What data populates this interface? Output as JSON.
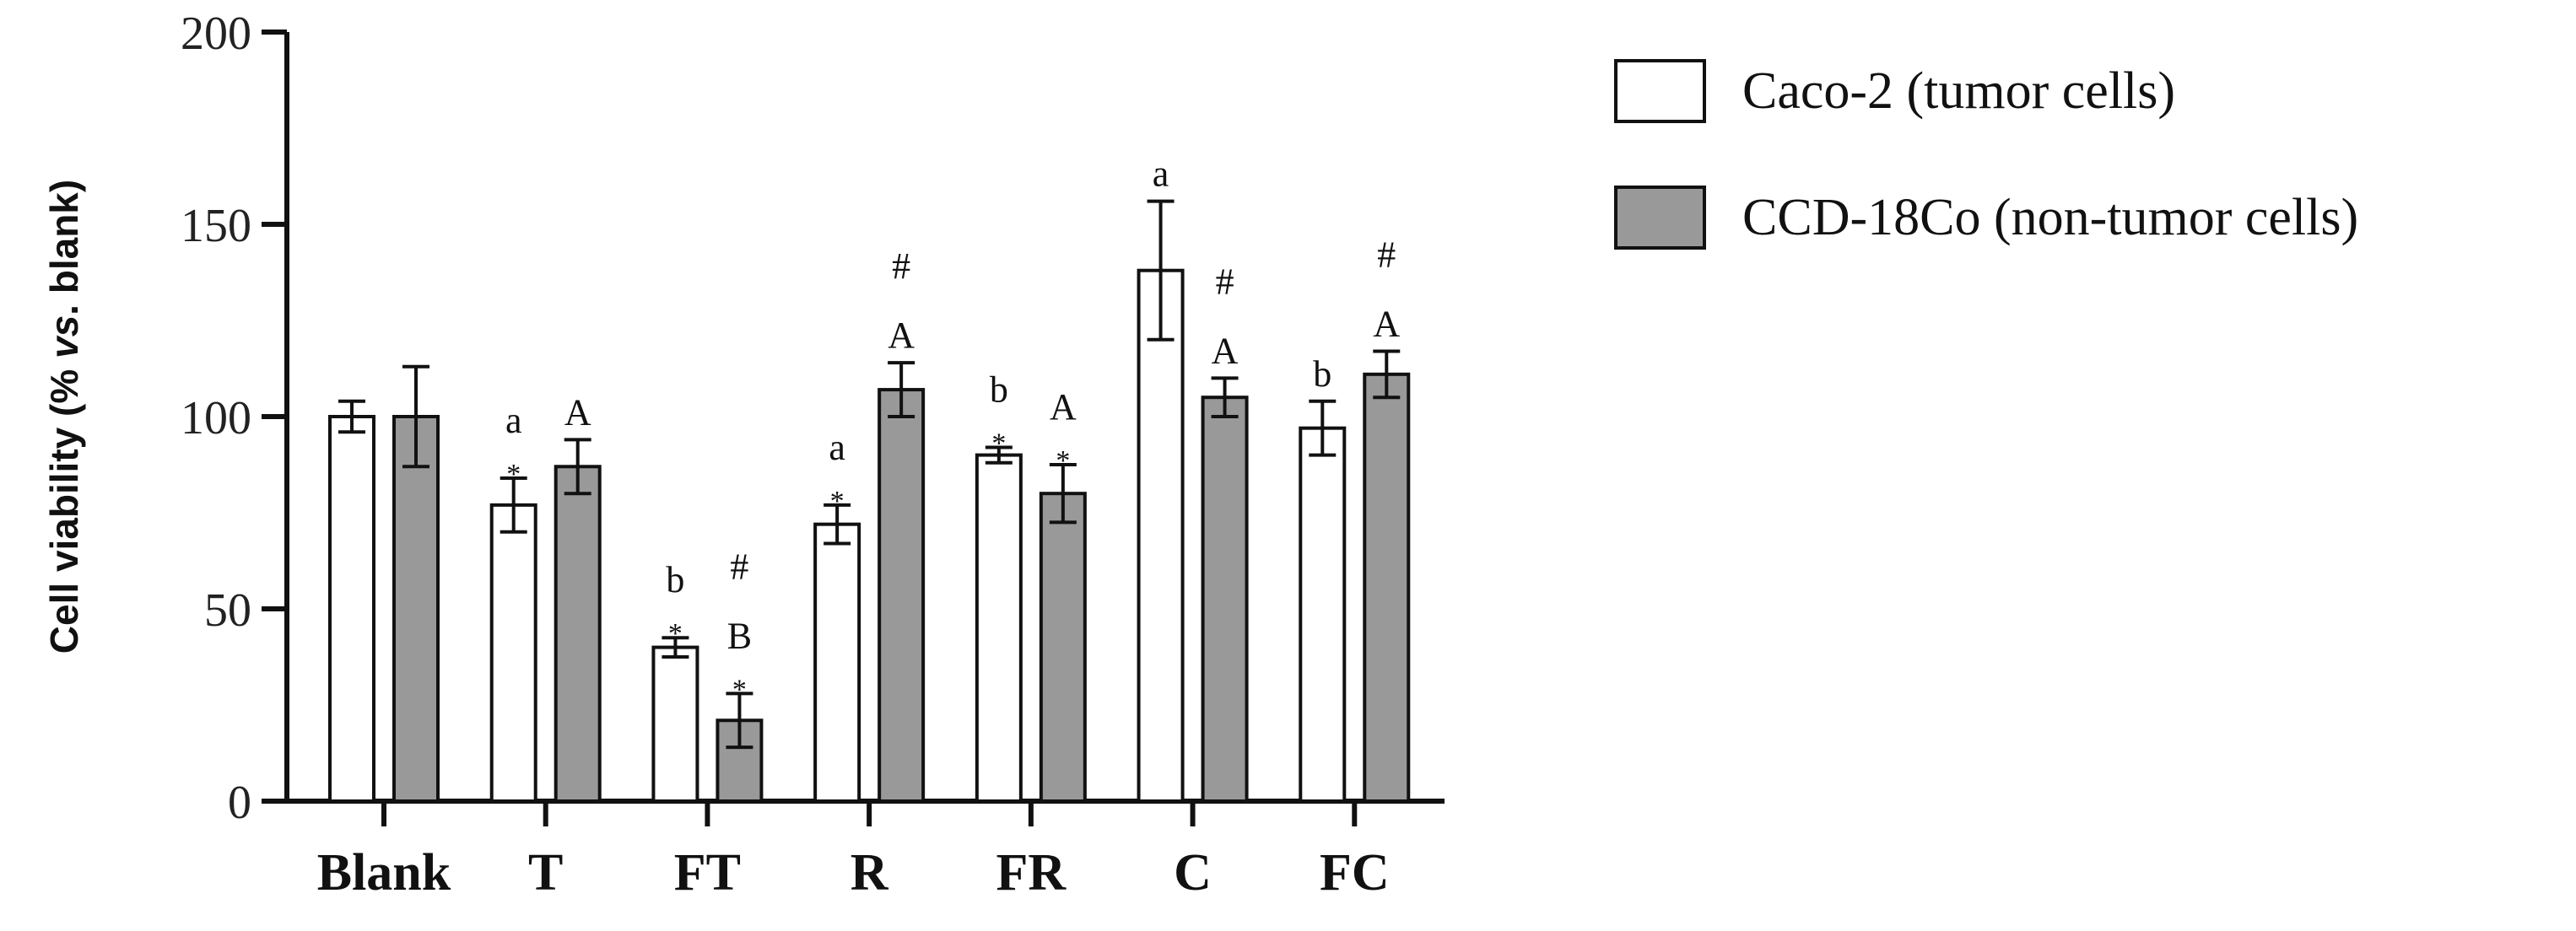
{
  "chart_data": {
    "type": "bar",
    "title": "",
    "xlabel": "",
    "ylabel": "Cell viability (% vs. blank)",
    "ylabel_parts": [
      "Cell viability (% ",
      "vs",
      ". blank)"
    ],
    "ylim": [
      0,
      200
    ],
    "yticks": [
      "0",
      "50",
      "100",
      "150",
      "200"
    ],
    "grid": false,
    "legend_position": "top-right",
    "categories": [
      "Blank",
      "T",
      "FT",
      "R",
      "FR",
      "C",
      "FC"
    ],
    "series": [
      {
        "name": "Caco-2 (tumor cells)",
        "color": "#ffffff",
        "values": [
          100,
          77,
          40,
          72,
          90,
          138,
          97
        ],
        "errors": [
          4,
          7,
          2.5,
          5,
          2,
          18,
          7
        ],
        "letters": [
          "",
          "a",
          "b",
          "a",
          "b",
          "a",
          "b"
        ],
        "stars": [
          "",
          "*",
          "*",
          "*",
          "*",
          "",
          ""
        ],
        "hashes": [
          "",
          "",
          "",
          "",
          "",
          "",
          ""
        ]
      },
      {
        "name": "CCD-18Co (non-tumor cells)",
        "color": "#999999",
        "values": [
          100,
          87,
          21,
          107,
          80,
          105,
          111
        ],
        "errors": [
          13,
          7,
          7,
          7,
          7.5,
          5,
          6
        ],
        "letters": [
          "",
          "A",
          "B",
          "A",
          "A",
          "A",
          "A"
        ],
        "stars": [
          "",
          "",
          "*",
          "",
          "*",
          "",
          ""
        ],
        "hashes": [
          "",
          "",
          "#",
          "#",
          "",
          "#",
          "#"
        ]
      }
    ]
  }
}
